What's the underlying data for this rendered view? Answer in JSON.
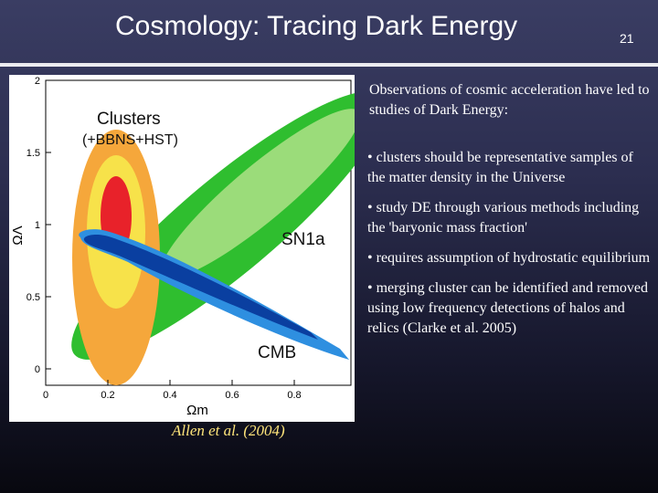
{
  "slide": {
    "title": "Cosmology: Tracing Dark Energy",
    "number": "21"
  },
  "figure": {
    "y_axis_label": "ΩΛ",
    "x_axis_label": "Ωm",
    "y_ticks": [
      "2",
      "1.5",
      "1",
      "0.5",
      "0"
    ],
    "x_ticks": [
      "0",
      "0.2",
      "0.4",
      "0.6",
      "0.8"
    ],
    "labels": {
      "clusters": "Clusters",
      "clusters_sub": "(+BBNS+HST)",
      "sn1a": "SN1a",
      "cmb": "CMB"
    },
    "colors": {
      "sn1a_outer": "#2fbe2f",
      "sn1a_inner": "#9bdc7a",
      "clusters_outer": "#f5a73b",
      "clusters_mid": "#f7e24a",
      "clusters_inner": "#e8222a",
      "cmb_outer": "#2e8fe0",
      "cmb_inner": "#0a3fa0"
    },
    "caption": "Allen et al. (2004)"
  },
  "text": {
    "intro": "Observations of cosmic acceleration have led to studies of Dark Energy:",
    "bullet_symbol": "•",
    "bullets": [
      "clusters should be representative samples of the matter density in the Universe",
      "study DE through various methods including the 'baryonic mass fraction'",
      "requires assumption of hydrostatic equilibrium",
      "merging cluster can be identified and removed using low frequency detections of halos and relics (Clarke et al. 2005)"
    ]
  }
}
